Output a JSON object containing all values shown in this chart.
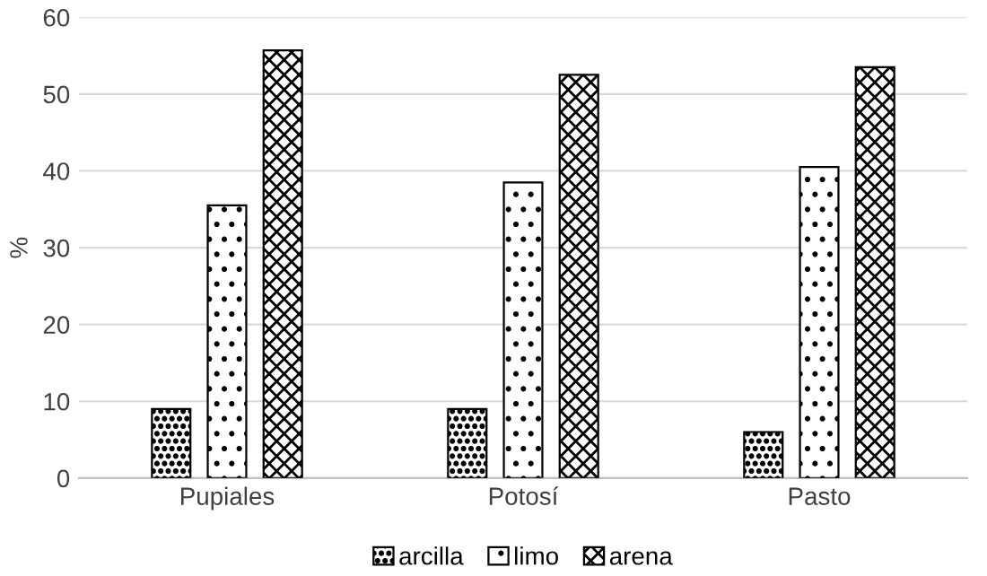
{
  "chart_data": {
    "type": "bar",
    "ylabel": "%",
    "categories": [
      "Pupiales",
      "Potosí",
      "Pasto"
    ],
    "series": [
      {
        "name": "arcilla",
        "color": "#000000",
        "values": [
          9,
          9,
          6
        ]
      },
      {
        "name": "limo",
        "color": "#000000",
        "values": [
          35.5,
          38.5,
          40.5
        ]
      },
      {
        "name": "arena",
        "color": "#000000",
        "values": [
          55.7,
          52.5,
          53.5
        ]
      }
    ],
    "ylim": [
      0,
      60
    ],
    "yticks": [
      0,
      10,
      20,
      30,
      40,
      50,
      60
    ],
    "grid": "y",
    "legend": "bottom"
  }
}
